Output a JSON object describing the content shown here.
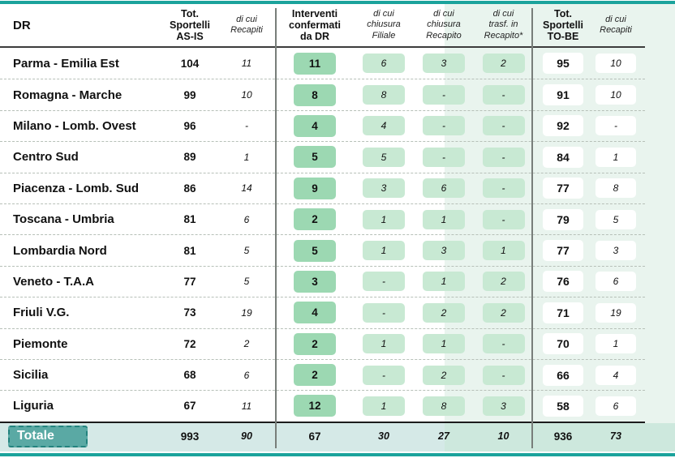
{
  "colors": {
    "accent": "#1ba39c",
    "accent-mid": "#5aa9a4",
    "accent-dark": "#23837e",
    "band-teal": "#d5e9e7",
    "band-green": "#e9f4ee",
    "pill-dark": "#9cd8b2",
    "pill-light": "#c8e9d3"
  },
  "table": {
    "header": [
      "DR",
      "Tot.\nSportelli\nAS-IS",
      "di cui\nRecapiti",
      "Interventi\nconfermati\nda DR",
      "di cui\nchiusura\nFiliale",
      "di cui\nchiusura\nRecapito",
      "di cui\ntrasf. in\nRecapito*",
      "Tot.\nSportelli\nTO-BE",
      "di cui\nRecapiti"
    ],
    "rows": [
      {
        "dr": "Parma - Emilia Est",
        "asis_tot": "104",
        "asis_recapiti": "11",
        "confermati": "11",
        "chiusura_filiale": "6",
        "chiusura_recapito": "3",
        "trasf_recapito": "2",
        "tobe_tot": "95",
        "tobe_recapiti": "10"
      },
      {
        "dr": "Romagna - Marche",
        "asis_tot": "99",
        "asis_recapiti": "10",
        "confermati": "8",
        "chiusura_filiale": "8",
        "chiusura_recapito": "-",
        "trasf_recapito": "-",
        "tobe_tot": "91",
        "tobe_recapiti": "10"
      },
      {
        "dr": "Milano - Lomb. Ovest",
        "asis_tot": "96",
        "asis_recapiti": "-",
        "confermati": "4",
        "chiusura_filiale": "4",
        "chiusura_recapito": "-",
        "trasf_recapito": "-",
        "tobe_tot": "92",
        "tobe_recapiti": "-"
      },
      {
        "dr": "Centro Sud",
        "asis_tot": "89",
        "asis_recapiti": "1",
        "confermati": "5",
        "chiusura_filiale": "5",
        "chiusura_recapito": "-",
        "trasf_recapito": "-",
        "tobe_tot": "84",
        "tobe_recapiti": "1"
      },
      {
        "dr": "Piacenza - Lomb. Sud",
        "asis_tot": "86",
        "asis_recapiti": "14",
        "confermati": "9",
        "chiusura_filiale": "3",
        "chiusura_recapito": "6",
        "trasf_recapito": "-",
        "tobe_tot": "77",
        "tobe_recapiti": "8"
      },
      {
        "dr": "Toscana - Umbria",
        "asis_tot": "81",
        "asis_recapiti": "6",
        "confermati": "2",
        "chiusura_filiale": "1",
        "chiusura_recapito": "1",
        "trasf_recapito": "-",
        "tobe_tot": "79",
        "tobe_recapiti": "5"
      },
      {
        "dr": "Lombardia Nord",
        "asis_tot": "81",
        "asis_recapiti": "5",
        "confermati": "5",
        "chiusura_filiale": "1",
        "chiusura_recapito": "3",
        "trasf_recapito": "1",
        "tobe_tot": "77",
        "tobe_recapiti": "3"
      },
      {
        "dr": "Veneto - T.A.A",
        "asis_tot": "77",
        "asis_recapiti": "5",
        "confermati": "3",
        "chiusura_filiale": "-",
        "chiusura_recapito": "1",
        "trasf_recapito": "2",
        "tobe_tot": "76",
        "tobe_recapiti": "6"
      },
      {
        "dr": "Friuli V.G.",
        "asis_tot": "73",
        "asis_recapiti": "19",
        "confermati": "4",
        "chiusura_filiale": "-",
        "chiusura_recapito": "2",
        "trasf_recapito": "2",
        "tobe_tot": "71",
        "tobe_recapiti": "19"
      },
      {
        "dr": "Piemonte",
        "asis_tot": "72",
        "asis_recapiti": "2",
        "confermati": "2",
        "chiusura_filiale": "1",
        "chiusura_recapito": "1",
        "trasf_recapito": "-",
        "tobe_tot": "70",
        "tobe_recapiti": "1"
      },
      {
        "dr": "Sicilia",
        "asis_tot": "68",
        "asis_recapiti": "6",
        "confermati": "2",
        "chiusura_filiale": "-",
        "chiusura_recapito": "2",
        "trasf_recapito": "-",
        "tobe_tot": "66",
        "tobe_recapiti": "4"
      },
      {
        "dr": "Liguria",
        "asis_tot": "67",
        "asis_recapiti": "11",
        "confermati": "12",
        "chiusura_filiale": "1",
        "chiusura_recapito": "8",
        "trasf_recapito": "3",
        "tobe_tot": "58",
        "tobe_recapiti": "6"
      }
    ],
    "totals": {
      "label": "Totale",
      "asis_tot": "993",
      "asis_recapiti": "90",
      "confermati": "67",
      "chiusura_filiale": "30",
      "chiusura_recapito": "27",
      "trasf_recapito": "10",
      "tobe_tot": "936",
      "tobe_recapiti": "73"
    }
  }
}
